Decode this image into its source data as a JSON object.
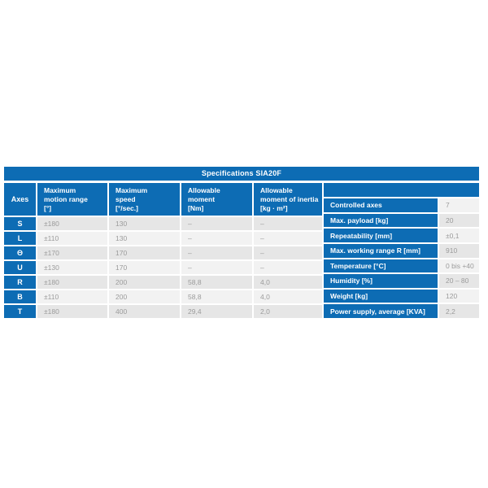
{
  "title": "Specifications SIA20F",
  "accent_color": "#0d6cb4",
  "row_colors": {
    "dark": "#e6e6e6",
    "light": "#f2f2f2",
    "value_text": "#9b9b9b"
  },
  "left_table": {
    "headers": [
      "Axes",
      "Maximum\nmotion range\n[°]",
      "Maximum\nspeed\n[°/sec.]",
      "Allowable\nmoment\n[Nm]",
      "Allowable\nmoment of inertia\n[kg · m²]"
    ],
    "rows": [
      {
        "axis": "S",
        "motion_range": "±180",
        "speed": "130",
        "moment": "–",
        "inertia": "–"
      },
      {
        "axis": "L",
        "motion_range": "±110",
        "speed": "130",
        "moment": "–",
        "inertia": "–"
      },
      {
        "axis": "Θ",
        "motion_range": "±170",
        "speed": "170",
        "moment": "–",
        "inertia": "–"
      },
      {
        "axis": "U",
        "motion_range": "±130",
        "speed": "170",
        "moment": "–",
        "inertia": "–"
      },
      {
        "axis": "R",
        "motion_range": "±180",
        "speed": "200",
        "moment": "58,8",
        "inertia": "4,0"
      },
      {
        "axis": "B",
        "motion_range": "±110",
        "speed": "200",
        "moment": "58,8",
        "inertia": "4,0"
      },
      {
        "axis": "T",
        "motion_range": "±180",
        "speed": "400",
        "moment": "29,4",
        "inertia": "2,0"
      }
    ]
  },
  "right_table": {
    "rows": [
      {
        "label": "Controlled axes",
        "value": "7"
      },
      {
        "label": "Max. payload [kg]",
        "value": "20"
      },
      {
        "label": "Repeatability [mm]",
        "value": "±0,1"
      },
      {
        "label": "Max. working range R [mm]",
        "value": "910"
      },
      {
        "label": "Temperature [°C]",
        "value": "0 bis +40"
      },
      {
        "label": "Humidity [%]",
        "value": "20 – 80"
      },
      {
        "label": "Weight [kg]",
        "value": "120"
      },
      {
        "label": "Power supply, average [KVA]",
        "value": "2,2"
      }
    ]
  }
}
